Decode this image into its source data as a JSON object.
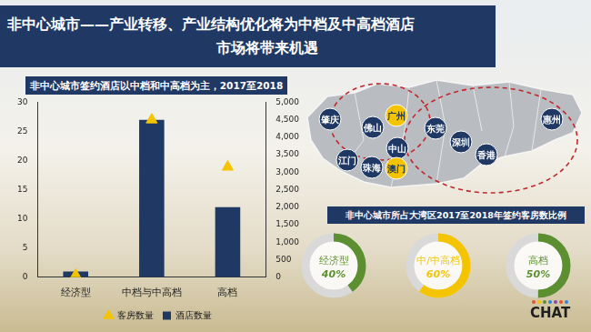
{
  "title_lines": [
    "非中心城市——产业转移、产业结构优化将为中档及中高档酒店",
    "市场将带来机遇"
  ],
  "chart_data": {
    "type": "bar",
    "title": "非中心城市签约酒店以中档和中高档为主，2017至2018",
    "categories": [
      "经济型",
      "中档与中高档",
      "高档"
    ],
    "series": [
      {
        "name": "酒店数量",
        "type": "bar",
        "color": "#1f3864",
        "values": [
          1,
          27,
          12
        ]
      },
      {
        "name": "客房数量",
        "type": "scatter",
        "marker": "triangle",
        "color": "#f5c400",
        "axis": "y2",
        "values": [
          60,
          4500,
          3150
        ]
      }
    ],
    "ylim": [
      0,
      30
    ],
    "yticks": [
      0,
      5,
      10,
      15,
      20,
      25,
      30
    ],
    "y2lim": [
      0,
      5000
    ],
    "y2ticks": [
      0,
      500,
      1000,
      1500,
      2000,
      2500,
      3000,
      3500,
      4000,
      4500,
      5000
    ],
    "legend": "bottom",
    "grid": false
  },
  "map": {
    "cities": [
      {
        "label": "肇庆",
        "color": "#1f3864"
      },
      {
        "label": "佛山",
        "color": "#1f3864"
      },
      {
        "label": "广州",
        "color": "#f5c400"
      },
      {
        "label": "东莞",
        "color": "#1f3864"
      },
      {
        "label": "惠州",
        "color": "#1f3864"
      },
      {
        "label": "中山",
        "color": "#1f3864"
      },
      {
        "label": "深圳",
        "color": "#1f3864"
      },
      {
        "label": "江门",
        "color": "#1f3864"
      },
      {
        "label": "珠海",
        "color": "#1f3864"
      },
      {
        "label": "澳门",
        "color": "#f5c400"
      },
      {
        "label": "香港",
        "color": "#1f3864"
      }
    ]
  },
  "donut_panel": {
    "title": "非中心城市所占大湾区2017至2018年签约客房数比例",
    "items": [
      {
        "label": "经济型",
        "value": 40,
        "value_label": "40%",
        "color": "#5b8f2f"
      },
      {
        "label": "中/中高档",
        "value": 60,
        "value_label": "60%",
        "color": "#f5c400"
      },
      {
        "label": "高档",
        "value": 50,
        "value_label": "50%",
        "color": "#5b8f2f"
      }
    ]
  },
  "logo": "CHAT"
}
